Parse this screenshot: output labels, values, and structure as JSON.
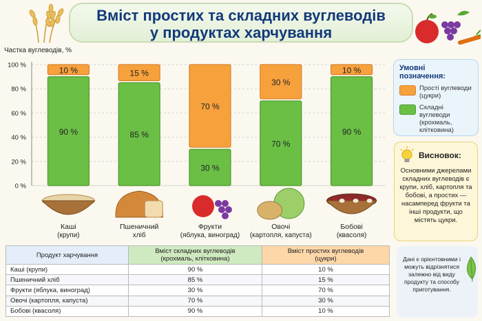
{
  "title": {
    "line1": "Вміст простих та складних вуглеводів",
    "line2": "у продуктах харчування"
  },
  "chart_data": {
    "type": "bar",
    "stacked": true,
    "ylabel": "Частка вуглеводів, %",
    "ylim": [
      0,
      100
    ],
    "yticks": [
      "0 %",
      "20 %",
      "40 %",
      "60 %",
      "80 %",
      "100 %"
    ],
    "categories": [
      {
        "name": "Каші",
        "sub": "(крупи)"
      },
      {
        "name": "Пшеничний",
        "sub": "хліб"
      },
      {
        "name": "Фрукти",
        "sub": "(яблука, виноград)"
      },
      {
        "name": "Овочі",
        "sub": "(картопля, капуста)"
      },
      {
        "name": "Бобові",
        "sub": "(квасоля)"
      }
    ],
    "series": [
      {
        "name": "Складні вуглеводи (крохмаль, клітковина)",
        "color": "#6bbf45",
        "values": [
          90,
          85,
          30,
          70,
          90
        ],
        "labels": [
          "90 %",
          "85 %",
          "30 %",
          "70 %",
          "90 %"
        ]
      },
      {
        "name": "Прості вуглеводи (цукри)",
        "color": "#f7a13d",
        "values": [
          10,
          15,
          70,
          30,
          10
        ],
        "labels": [
          "10 %",
          "15 %",
          "70 %",
          "30 %",
          "10 %"
        ]
      }
    ],
    "grid": true,
    "legend_position": "right"
  },
  "legend": {
    "title": "Умовні позначення:",
    "simple": {
      "line1": "Прості вуглеводи",
      "line2": "(цукри)",
      "color": "#f7a13d"
    },
    "complex": {
      "line1": "Складні вуглеводи",
      "line2": "(крохмаль,",
      "line3": "клітковина)",
      "color": "#6bbf45"
    }
  },
  "conclusion": {
    "title": "Висновок:",
    "text": "Основними джерелами складних вуглеводів є крупи, хліб, картопля та бобові, а простих — насамперед фрукти та інші продукти, що містять цукри."
  },
  "note": {
    "text": "Дані є орієнтовними і можуть відрізнятися залежно від виду продукту та способу приготування."
  },
  "table": {
    "headers": {
      "product": "Продукт харчування",
      "complex_l1": "Вміст складних вуглеводів",
      "complex_l2": "(крохмаль, клітковина)",
      "simple_l1": "Вміст простих вуглеводів",
      "simple_l2": "(цукри)"
    },
    "rows": [
      {
        "product": "Каші (крупи)",
        "complex": "90 %",
        "simple": "10 %"
      },
      {
        "product": "Пшеничний хліб",
        "complex": "85 %",
        "simple": "15 %"
      },
      {
        "product": "Фрукти (яблука, виноград)",
        "complex": "30 %",
        "simple": "70 %"
      },
      {
        "product": "Овочі (картопля, капуста)",
        "complex": "70 %",
        "simple": "30 %"
      },
      {
        "product": "Бобові (квасоля)",
        "complex": "90 %",
        "simple": "10 %"
      }
    ]
  },
  "icons": [
    "wheat-icon",
    "fruit-basket-icon",
    "lightbulb-icon",
    "leaf-icon",
    "porridge-bowl-icon",
    "bread-icon",
    "apple-grapes-icon",
    "potato-cabbage-icon",
    "beans-bowl-icon"
  ]
}
